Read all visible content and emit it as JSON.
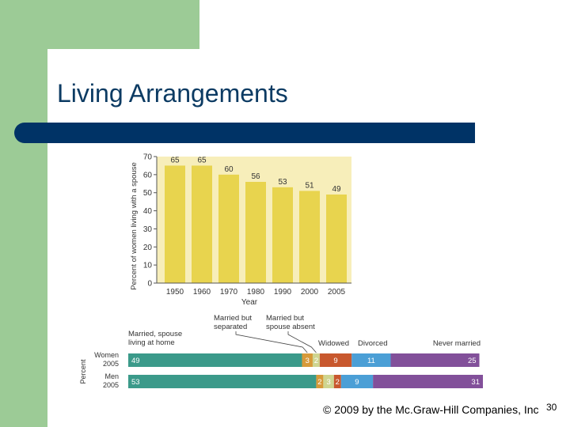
{
  "slide": {
    "title": "Living Arrangements",
    "footer": "© 2009 by the Mc.Graw-Hill Companies, Inc",
    "page_number": "30"
  },
  "colors": {
    "green": "#9ccb96",
    "navy": "#003366",
    "title_text": "#0c3b63",
    "plot_bg": "#f7eeba",
    "bar_fill": "#e8d44e"
  },
  "chart_data": [
    {
      "type": "bar",
      "categories": [
        "1950",
        "1960",
        "1970",
        "1980",
        "1990",
        "2000",
        "2005"
      ],
      "values": [
        65,
        65,
        60,
        56,
        53,
        51,
        49
      ],
      "xlabel": "Year",
      "ylabel": "Percent of women living with a spouse",
      "ylim": [
        0,
        70
      ],
      "yticks": [
        "0",
        "10",
        "20",
        "30",
        "40",
        "50",
        "60",
        "70"
      ]
    },
    {
      "type": "bar",
      "orientation": "horizontal-stacked",
      "ylabel": "Percent",
      "categories": [
        "Women 2005",
        "Men 2005"
      ],
      "category_lines": [
        [
          "Women",
          "2005"
        ],
        [
          "Men",
          "2005"
        ]
      ],
      "series": [
        {
          "name": "Married, spouse living at home",
          "label_lines": [
            "Married, spouse",
            "living at home"
          ],
          "color": "#3b9a8a",
          "values": [
            49,
            53
          ]
        },
        {
          "name": "Married but separated",
          "label_lines": [
            "Married but",
            "separated"
          ],
          "color": "#d79a3a",
          "values": [
            3,
            2
          ]
        },
        {
          "name": "Married but spouse absent",
          "label_lines": [
            "Married but",
            "spouse absent"
          ],
          "color": "#cfd590",
          "values": [
            2,
            3
          ]
        },
        {
          "name": "Widowed",
          "label_lines": [
            "Widowed"
          ],
          "color": "#c8582e",
          "values": [
            9,
            2
          ]
        },
        {
          "name": "Divorced",
          "label_lines": [
            "Divorced"
          ],
          "color": "#4b9fd6",
          "values": [
            11,
            9
          ]
        },
        {
          "name": "Never married",
          "label_lines": [
            "Never married"
          ],
          "color": "#82509a",
          "values": [
            25,
            31
          ]
        }
      ]
    }
  ]
}
